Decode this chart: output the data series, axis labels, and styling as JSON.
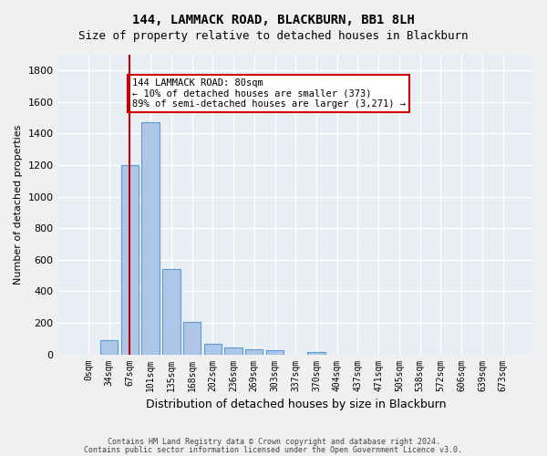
{
  "title_line1": "144, LAMMACK ROAD, BLACKBURN, BB1 8LH",
  "title_line2": "Size of property relative to detached houses in Blackburn",
  "xlabel": "Distribution of detached houses by size in Blackburn",
  "ylabel": "Number of detached properties",
  "categories": [
    "0sqm",
    "34sqm",
    "67sqm",
    "101sqm",
    "135sqm",
    "168sqm",
    "202sqm",
    "236sqm",
    "269sqm",
    "303sqm",
    "337sqm",
    "370sqm",
    "404sqm",
    "437sqm",
    "471sqm",
    "505sqm",
    "538sqm",
    "572sqm",
    "606sqm",
    "639sqm",
    "673sqm"
  ],
  "values": [
    0,
    90,
    1200,
    1470,
    540,
    205,
    65,
    45,
    32,
    27,
    0,
    15,
    0,
    0,
    0,
    0,
    0,
    0,
    0,
    0,
    0
  ],
  "bar_color": "#aec6e8",
  "bar_edge_color": "#5b9bd5",
  "vline_x": 2,
  "vline_color": "#cc0000",
  "annotation_text": "144 LAMMACK ROAD: 80sqm\n← 10% of detached houses are smaller (373)\n89% of semi-detached houses are larger (3,271) →",
  "annotation_box_color": "#cc0000",
  "ylim": [
    0,
    1900
  ],
  "yticks": [
    0,
    200,
    400,
    600,
    800,
    1000,
    1200,
    1400,
    1600,
    1800
  ],
  "background_color": "#e8eef4",
  "grid_color": "#ffffff",
  "footer_line1": "Contains HM Land Registry data © Crown copyright and database right 2024.",
  "footer_line2": "Contains public sector information licensed under the Open Government Licence v3.0."
}
